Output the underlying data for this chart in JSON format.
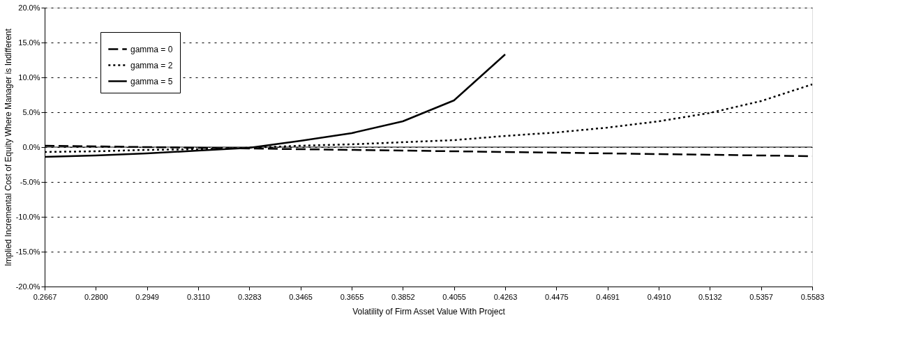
{
  "chart_data": {
    "type": "line",
    "xlabel": "Volatility of Firm Asset Value With Project",
    "ylabel": "Implied Incremental Cost of Equity Where Manager is Indifferent",
    "categories": [
      "0.2667",
      "0.2800",
      "0.2949",
      "0.3110",
      "0.3283",
      "0.3465",
      "0.3655",
      "0.3852",
      "0.4055",
      "0.4263",
      "0.4475",
      "0.4691",
      "0.4910",
      "0.5132",
      "0.5357",
      "0.5583"
    ],
    "series": [
      {
        "name": "gamma = 0",
        "color": "#000000",
        "line_style": "dashed",
        "values": [
          0.2,
          0.1,
          0.0,
          -0.1,
          -0.2,
          -0.3,
          -0.4,
          -0.5,
          -0.6,
          -0.7,
          -0.8,
          -0.9,
          -1.0,
          -1.1,
          -1.2,
          -1.3
        ]
      },
      {
        "name": "gamma = 2",
        "color": "#000000",
        "line_style": "dotted",
        "values": [
          -0.7,
          -0.6,
          -0.4,
          -0.3,
          -0.1,
          0.2,
          0.4,
          0.7,
          1.0,
          1.6,
          2.1,
          2.8,
          3.7,
          4.9,
          6.6,
          9.0
        ]
      },
      {
        "name": "gamma = 5",
        "color": "#000000",
        "line_style": "solid",
        "values": [
          -1.4,
          -1.2,
          -0.9,
          -0.5,
          -0.1,
          0.9,
          2.0,
          3.7,
          6.7,
          13.3,
          null,
          null,
          null,
          null,
          null,
          null
        ]
      }
    ],
    "ylim": [
      -20,
      20
    ],
    "yticks": [
      {
        "value": -20,
        "label": "-20.0%"
      },
      {
        "value": -15,
        "label": "-15.0%"
      },
      {
        "value": -10,
        "label": "-10.0%"
      },
      {
        "value": -5,
        "label": "-5.0%"
      },
      {
        "value": 0,
        "label": "0.0%"
      },
      {
        "value": 5,
        "label": "5.0%"
      },
      {
        "value": 10,
        "label": "10.0%"
      },
      {
        "value": 15,
        "label": "15.0%"
      },
      {
        "value": 20,
        "label": "20.0%"
      }
    ],
    "ref_lines": [
      {
        "axis": "y",
        "value": 0,
        "color": "#000000"
      }
    ],
    "grid": "y",
    "legend": "top left",
    "marker": "none"
  }
}
